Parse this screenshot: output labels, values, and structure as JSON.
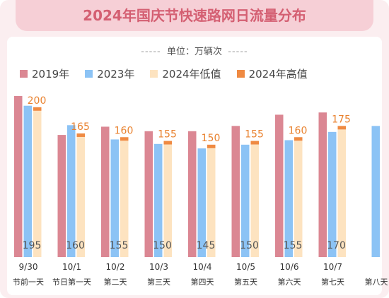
{
  "title": "2024年国庆节快速路网日流量分布",
  "unit": {
    "dash_left": "-----",
    "label": "单位：万辆次",
    "dash_right": "-----"
  },
  "colors": {
    "y2019": "#db8793",
    "y2023": "#8cc3f5",
    "y2024_low": "#fde3c0",
    "y2024_high": "#ef8a42",
    "low_label": "#555555",
    "high_label": "#e9822f"
  },
  "chart_data": {
    "type": "bar",
    "title": "2024年国庆节快速路网日流量分布",
    "unit": "万辆次",
    "legend_position": "top-left",
    "grid": false,
    "dates": [
      "9/30",
      "10/1",
      "10/2",
      "10/3",
      "10/4",
      "10/5",
      "10/6",
      "10/7",
      ""
    ],
    "categories": [
      "节前一天",
      "节日第一天",
      "第二天",
      "第三天",
      "第四天",
      "第五天",
      "第六天",
      "第七天",
      "第八天"
    ],
    "ylim": [
      0,
      230
    ],
    "series": [
      {
        "name": "2019年",
        "key": "y2019",
        "values": [
          215,
          163,
          174,
          168,
          168,
          175,
          190,
          193,
          null
        ]
      },
      {
        "name": "2023年",
        "key": "y2023",
        "values": [
          202,
          176,
          157,
          151,
          145,
          150,
          156,
          167,
          175
        ]
      },
      {
        "name": "2024年低值",
        "key": "y2024_low",
        "values": [
          195,
          160,
          155,
          150,
          145,
          150,
          155,
          170,
          null
        ]
      },
      {
        "name": "2024年高值",
        "key": "y2024_high",
        "values": [
          200,
          165,
          160,
          155,
          150,
          155,
          160,
          175,
          null
        ]
      }
    ]
  }
}
